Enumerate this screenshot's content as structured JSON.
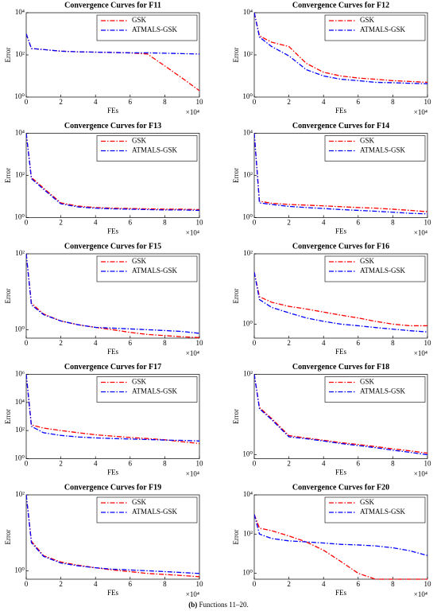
{
  "chart_data": [
    {
      "type": "line",
      "title": "Convergence Curves for F11",
      "x_label": "FEs",
      "y_label": "Error",
      "x_multiplier": "×10⁴",
      "log_y": true,
      "legend": "upper right",
      "xlim": [
        0,
        10
      ],
      "xticks": [
        0,
        2,
        4,
        6,
        8,
        10
      ],
      "ylim": [
        1,
        10000
      ],
      "yticks": [
        {
          "value": 1,
          "label": "10⁰"
        },
        {
          "value": 100,
          "label": "10²"
        },
        {
          "value": 10000,
          "label": "10⁴"
        }
      ],
      "x": [
        0,
        0.3,
        1,
        2,
        3,
        4,
        5,
        6,
        7,
        8,
        9,
        10
      ],
      "series": [
        {
          "name": "GSK",
          "color": "#ff0000",
          "values": [
            1000,
            200,
            180,
            150,
            140,
            135,
            130,
            125,
            110,
            30,
            8,
            2
          ]
        },
        {
          "name": "ATMALS-GSK",
          "color": "#0000ff",
          "values": [
            1000,
            200,
            180,
            150,
            140,
            135,
            130,
            125,
            125,
            120,
            115,
            110
          ]
        }
      ]
    },
    {
      "type": "line",
      "title": "Convergence Curves for F12",
      "x_label": "FEs",
      "y_label": "Error",
      "x_multiplier": "×10⁴",
      "log_y": true,
      "legend": "upper right",
      "xlim": [
        0,
        10
      ],
      "xticks": [
        0,
        2,
        4,
        6,
        8,
        10
      ],
      "ylim": [
        1,
        10000
      ],
      "yticks": [
        {
          "value": 1,
          "label": "10⁰"
        },
        {
          "value": 100,
          "label": "10²"
        },
        {
          "value": 10000,
          "label": "10⁴"
        }
      ],
      "x": [
        0,
        0.3,
        1,
        2,
        3,
        4,
        5,
        6,
        7,
        8,
        9,
        10
      ],
      "series": [
        {
          "name": "GSK",
          "color": "#ff0000",
          "values": [
            10000,
            800,
            400,
            250,
            40,
            15,
            10,
            8,
            7,
            6,
            5.5,
            5
          ]
        },
        {
          "name": "ATMALS-GSK",
          "color": "#0000ff",
          "values": [
            10000,
            700,
            250,
            90,
            20,
            10,
            7,
            6,
            5,
            4.8,
            4.5,
            4.3
          ]
        }
      ]
    },
    {
      "type": "line",
      "title": "Convergence Curves for F13",
      "x_label": "FEs",
      "y_label": "Error",
      "x_multiplier": "×10⁴",
      "log_y": true,
      "legend": "upper right",
      "xlim": [
        0,
        10
      ],
      "xticks": [
        0,
        2,
        4,
        6,
        8,
        10
      ],
      "ylim": [
        1,
        10000
      ],
      "yticks": [
        {
          "value": 1,
          "label": "10⁰"
        },
        {
          "value": 100,
          "label": "10²"
        },
        {
          "value": 10000,
          "label": "10⁴"
        }
      ],
      "x": [
        0,
        0.3,
        1,
        2,
        3,
        4,
        5,
        6,
        7,
        8,
        9,
        10
      ],
      "series": [
        {
          "name": "GSK",
          "color": "#ff0000",
          "values": [
            10000,
            80,
            25,
            5,
            3.5,
            3,
            2.8,
            2.7,
            2.6,
            2.5,
            2.5,
            2.4
          ]
        },
        {
          "name": "ATMALS-GSK",
          "color": "#0000ff",
          "values": [
            10000,
            70,
            22,
            4.5,
            3.2,
            2.8,
            2.6,
            2.5,
            2.4,
            2.3,
            2.3,
            2.2
          ]
        }
      ]
    },
    {
      "type": "line",
      "title": "Convergence Curves for F14",
      "x_label": "FEs",
      "y_label": "Error",
      "x_multiplier": "×10⁴",
      "log_y": true,
      "legend": "upper right",
      "xlim": [
        0,
        10
      ],
      "xticks": [
        0,
        2,
        4,
        6,
        8,
        10
      ],
      "ylim": [
        1,
        10000
      ],
      "yticks": [
        {
          "value": 1,
          "label": "10⁰"
        },
        {
          "value": 100,
          "label": "10²"
        },
        {
          "value": 10000,
          "label": "10⁴"
        }
      ],
      "x": [
        0,
        0.3,
        1,
        2,
        3,
        4,
        5,
        6,
        7,
        8,
        9,
        10
      ],
      "series": [
        {
          "name": "GSK",
          "color": "#ff0000",
          "values": [
            10000,
            6,
            4.8,
            4.2,
            3.9,
            3.6,
            3.3,
            3,
            2.8,
            2.5,
            2.2,
            1.9
          ]
        },
        {
          "name": "ATMALS-GSK",
          "color": "#0000ff",
          "values": [
            10000,
            5,
            4.2,
            3.4,
            3,
            2.7,
            2.4,
            2.2,
            2,
            1.8,
            1.6,
            1.5
          ]
        }
      ]
    },
    {
      "type": "line",
      "title": "Convergence Curves for F15",
      "x_label": "FEs",
      "y_label": "Error",
      "x_multiplier": "×10⁴",
      "log_y": true,
      "legend": "upper right",
      "xlim": [
        0,
        10
      ],
      "xticks": [
        0,
        2,
        4,
        6,
        8,
        10
      ],
      "ylim": [
        0.6,
        100
      ],
      "yticks": [
        {
          "value": 1,
          "label": "10⁰"
        },
        {
          "value": 100,
          "label": "10²"
        }
      ],
      "x": [
        0,
        0.3,
        1,
        2,
        3,
        4,
        5,
        6,
        7,
        8,
        9,
        10
      ],
      "series": [
        {
          "name": "GSK",
          "color": "#ff0000",
          "values": [
            100,
            5,
            2.6,
            1.7,
            1.35,
            1.15,
            1,
            0.85,
            0.75,
            0.7,
            0.65,
            0.62
          ]
        },
        {
          "name": "ATMALS-GSK",
          "color": "#0000ff",
          "values": [
            100,
            4.5,
            2.5,
            1.7,
            1.35,
            1.15,
            1.1,
            1.05,
            1,
            0.95,
            0.9,
            0.8
          ]
        }
      ]
    },
    {
      "type": "line",
      "title": "Convergence Curves for F16",
      "x_label": "FEs",
      "y_label": "Error",
      "x_multiplier": "×10⁴",
      "log_y": true,
      "legend": "upper right",
      "xlim": [
        0,
        10
      ],
      "xticks": [
        0,
        2,
        4,
        6,
        8,
        10
      ],
      "ylim": [
        0.4,
        100
      ],
      "yticks": [
        {
          "value": 1,
          "label": "10⁰"
        },
        {
          "value": 100,
          "label": "10²"
        }
      ],
      "x": [
        0,
        0.3,
        1,
        2,
        3,
        4,
        5,
        6,
        7,
        8,
        9,
        10
      ],
      "series": [
        {
          "name": "GSK",
          "color": "#ff0000",
          "values": [
            30,
            6,
            4.2,
            3.2,
            2.7,
            2.2,
            1.8,
            1.5,
            1.2,
            1,
            0.9,
            0.9
          ]
        },
        {
          "name": "ATMALS-GSK",
          "color": "#0000ff",
          "values": [
            30,
            5,
            3,
            2.1,
            1.5,
            1.2,
            1,
            0.9,
            0.8,
            0.72,
            0.65,
            0.6
          ]
        }
      ]
    },
    {
      "type": "line",
      "title": "Convergence Curves for F17",
      "x_label": "FEs",
      "y_label": "Error",
      "x_multiplier": "×10⁴",
      "log_y": true,
      "legend": "upper right",
      "xlim": [
        0,
        10
      ],
      "xticks": [
        0,
        2,
        4,
        6,
        8,
        10
      ],
      "ylim": [
        1,
        1000000
      ],
      "yticks": [
        {
          "value": 1,
          "label": "10⁰"
        },
        {
          "value": 100,
          "label": "10²"
        },
        {
          "value": 10000,
          "label": "10⁴"
        },
        {
          "value": 1000000,
          "label": "10⁶"
        }
      ],
      "x": [
        0,
        0.3,
        1,
        2,
        3,
        4,
        5,
        6,
        7,
        8,
        9,
        10
      ],
      "series": [
        {
          "name": "GSK",
          "color": "#ff0000",
          "values": [
            1000000,
            250,
            150,
            100,
            70,
            50,
            40,
            32,
            27,
            22,
            16,
            12
          ]
        },
        {
          "name": "ATMALS-GSK",
          "color": "#0000ff",
          "values": [
            1000000,
            200,
            70,
            45,
            35,
            30,
            27,
            25,
            23,
            21,
            20,
            18
          ]
        }
      ]
    },
    {
      "type": "line",
      "title": "Convergence Curves for F18",
      "x_label": "FEs",
      "y_label": "Error",
      "x_multiplier": "×10⁴",
      "log_y": true,
      "legend": "upper right",
      "xlim": [
        0,
        10
      ],
      "xticks": [
        0,
        2,
        4,
        6,
        8,
        10
      ],
      "ylim": [
        0.8,
        100
      ],
      "yticks": [
        {
          "value": 1,
          "label": "10⁰"
        },
        {
          "value": 100,
          "label": "10²"
        }
      ],
      "x": [
        0,
        0.3,
        1,
        2,
        3,
        4,
        5,
        6,
        7,
        8,
        9,
        10
      ],
      "series": [
        {
          "name": "GSK",
          "color": "#ff0000",
          "values": [
            100,
            15,
            8,
            3,
            2.6,
            2.3,
            2,
            1.8,
            1.6,
            1.4,
            1.25,
            1.1
          ]
        },
        {
          "name": "ATMALS-GSK",
          "color": "#0000ff",
          "values": [
            100,
            14,
            7.5,
            2.8,
            2.5,
            2.2,
            1.9,
            1.7,
            1.5,
            1.3,
            1.15,
            1.0
          ]
        }
      ]
    },
    {
      "type": "line",
      "title": "Convergence Curves for F19",
      "x_label": "FEs",
      "y_label": "Error",
      "x_multiplier": "×10⁴",
      "log_y": true,
      "legend": "upper right",
      "xlim": [
        0,
        10
      ],
      "xticks": [
        0,
        2,
        4,
        6,
        8,
        10
      ],
      "ylim": [
        0.6,
        100
      ],
      "yticks": [
        {
          "value": 1,
          "label": "10⁰"
        },
        {
          "value": 100,
          "label": "10²"
        }
      ],
      "x": [
        0,
        0.3,
        1,
        2,
        3,
        4,
        5,
        6,
        7,
        8,
        9,
        10
      ],
      "series": [
        {
          "name": "GSK",
          "color": "#ff0000",
          "values": [
            100,
            6,
            2.5,
            1.7,
            1.4,
            1.2,
            1.05,
            0.95,
            0.85,
            0.8,
            0.75,
            0.7
          ]
        },
        {
          "name": "ATMALS-GSK",
          "color": "#0000ff",
          "values": [
            100,
            5.5,
            2.4,
            1.6,
            1.35,
            1.2,
            1.1,
            1.05,
            1,
            0.95,
            0.9,
            0.85
          ]
        }
      ]
    },
    {
      "type": "line",
      "title": "Convergence Curves for F20",
      "x_label": "FEs",
      "y_label": "Error",
      "x_multiplier": "×10⁴",
      "log_y": true,
      "legend": "upper right",
      "xlim": [
        0,
        10
      ],
      "xticks": [
        0,
        2,
        4,
        6,
        8,
        10
      ],
      "ylim": [
        0.5,
        10000
      ],
      "yticks": [
        {
          "value": 1,
          "label": "10⁰"
        },
        {
          "value": 100,
          "label": "10²"
        },
        {
          "value": 10000,
          "label": "10⁴"
        }
      ],
      "x": [
        0,
        0.3,
        1,
        2,
        3,
        4,
        5,
        6,
        7,
        8,
        9,
        10
      ],
      "series": [
        {
          "name": "GSK",
          "color": "#ff0000",
          "values": [
            1000,
            200,
            150,
            80,
            40,
            15,
            4,
            1,
            0.5,
            0.5,
            0.5,
            0.5
          ]
        },
        {
          "name": "ATMALS-GSK",
          "color": "#0000ff",
          "values": [
            1000,
            100,
            60,
            45,
            40,
            35,
            30,
            28,
            25,
            20,
            14,
            8
          ]
        }
      ]
    }
  ],
  "caption": {
    "label": "(b)",
    "text": "Functions 11–20."
  }
}
